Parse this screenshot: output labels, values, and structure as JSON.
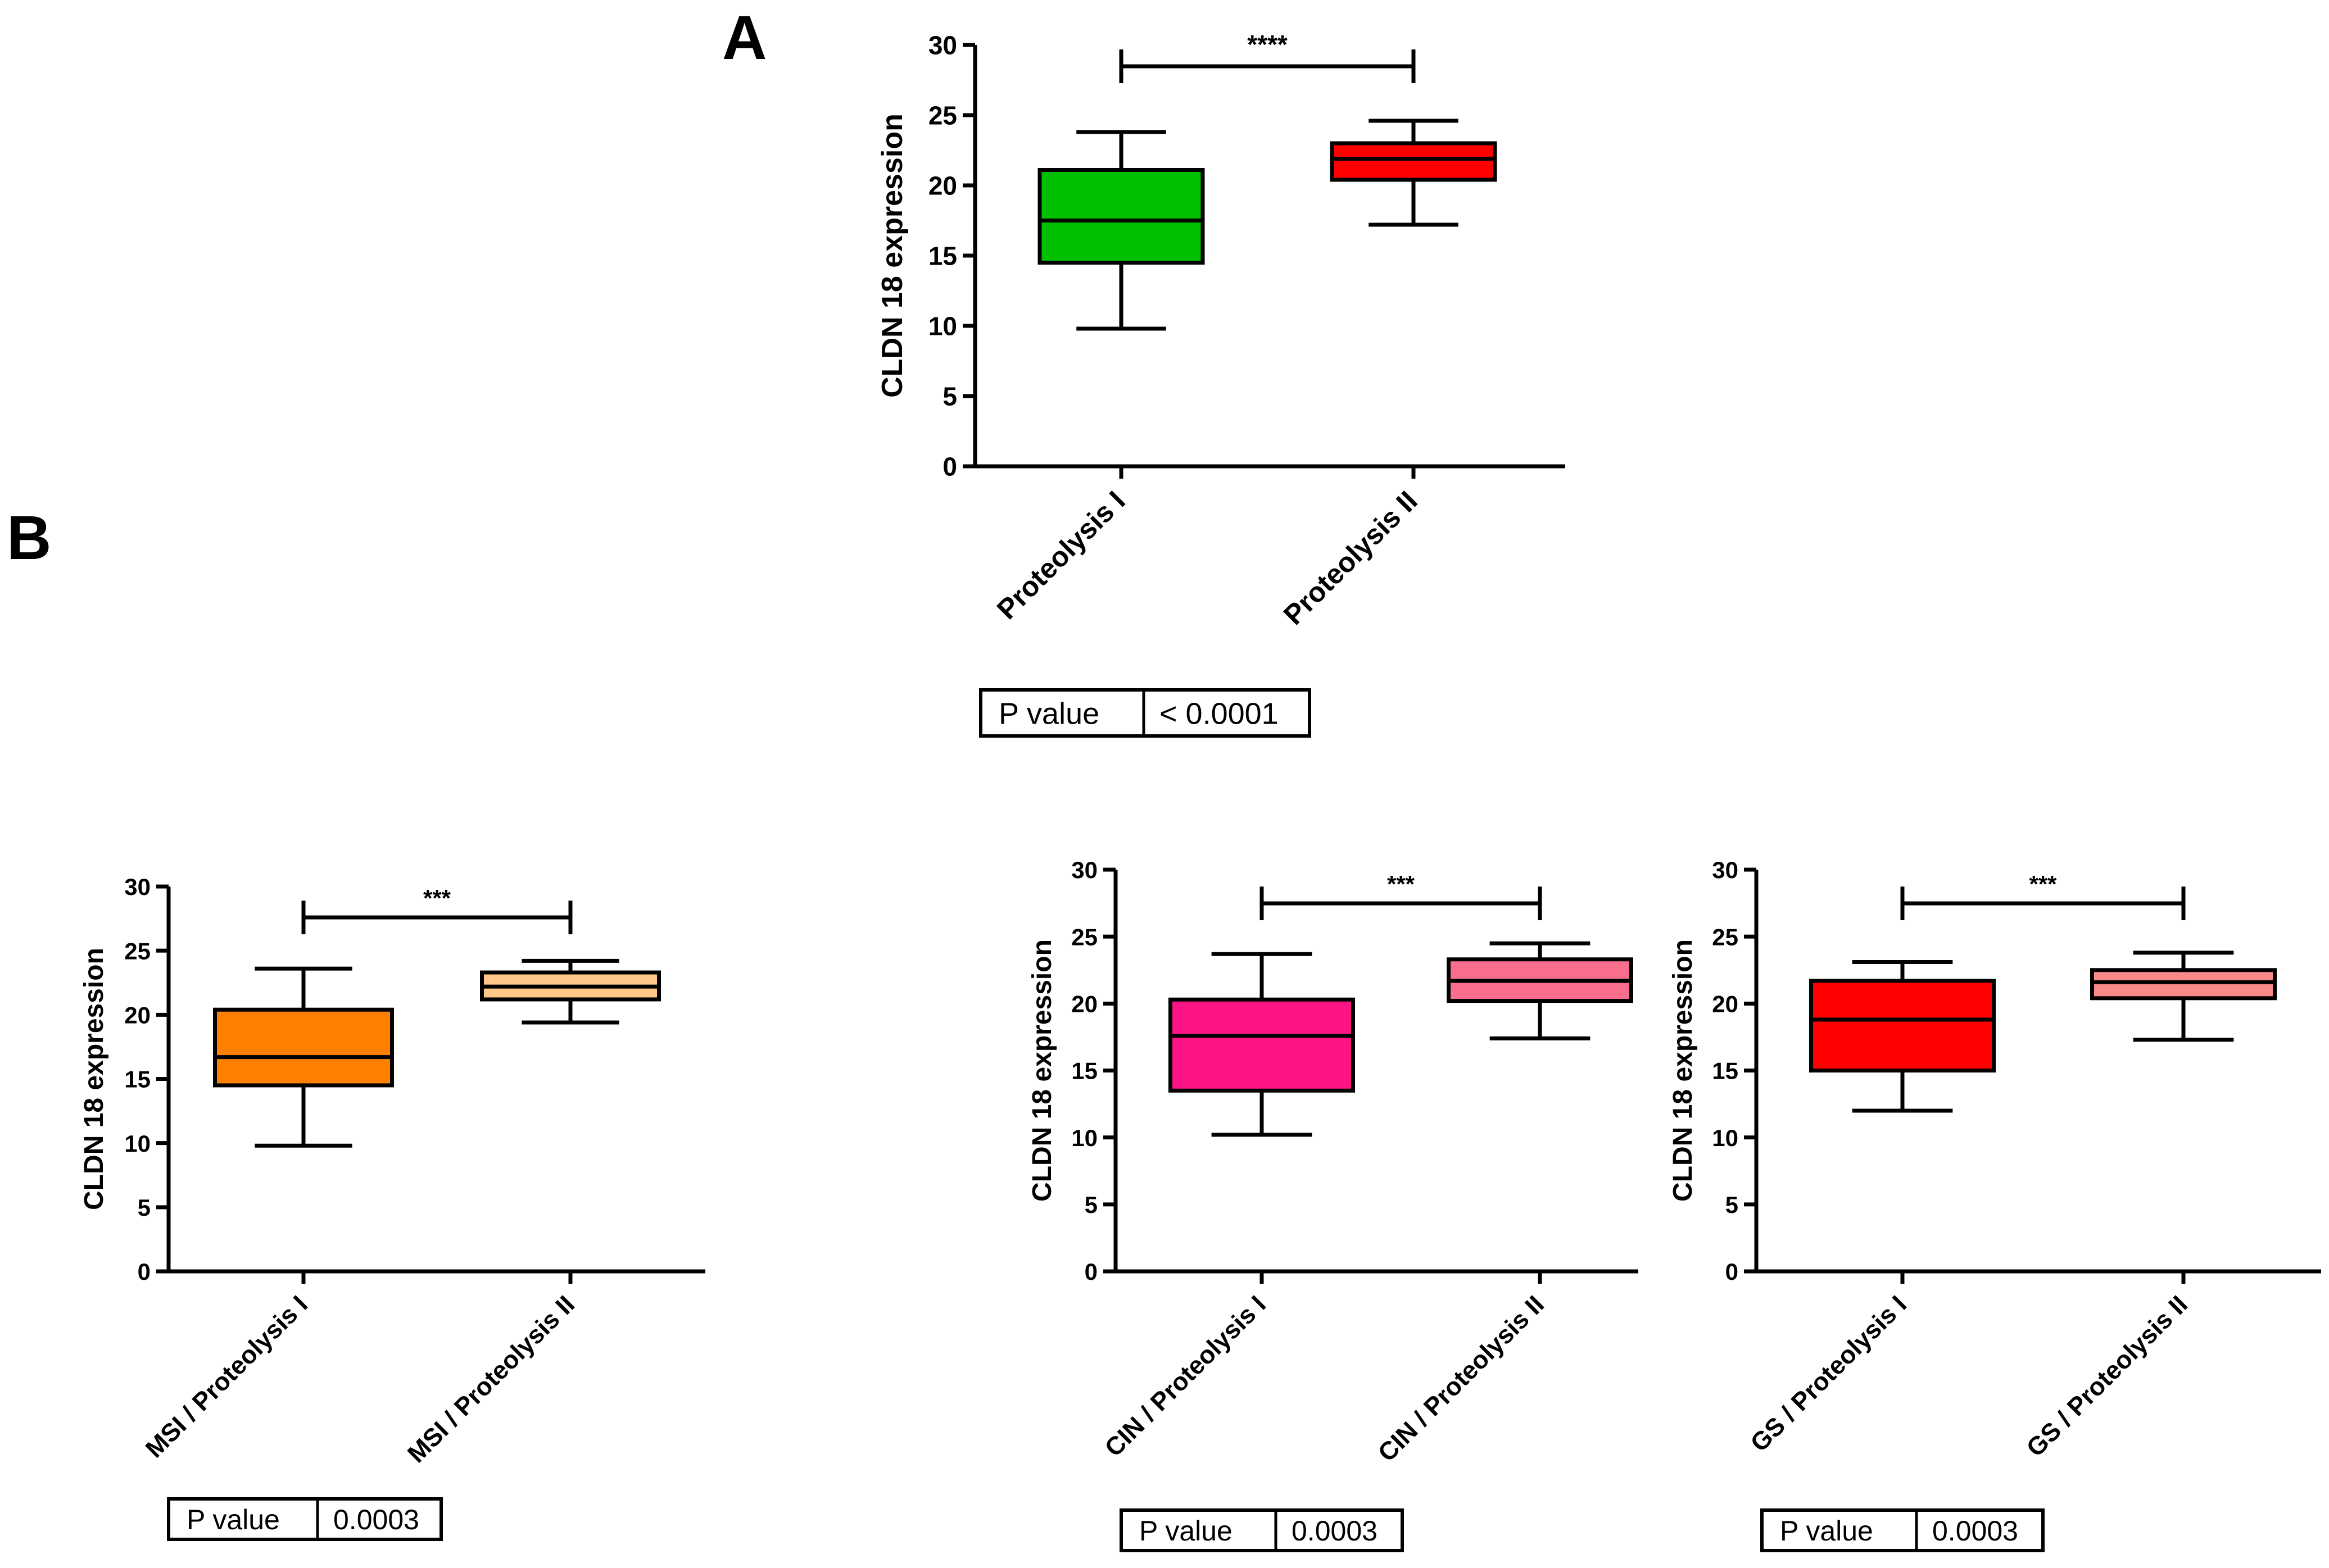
{
  "panel_labels": {
    "a": "A",
    "b": "B"
  },
  "chart_data": [
    {
      "id": "A",
      "type": "box",
      "ylabel": "CLDN 18 expression",
      "ylim": [
        0,
        30
      ],
      "yticks": [
        "0",
        "5",
        "10",
        "15",
        "20",
        "25",
        "30"
      ],
      "categories": [
        "Proteolysis I",
        "Proteolysis II"
      ],
      "boxes": [
        {
          "min": 9.8,
          "q1": 14.5,
          "median": 17.5,
          "q3": 21.1,
          "max": 23.8,
          "color": "#00c000"
        },
        {
          "min": 17.2,
          "q1": 20.4,
          "median": 21.9,
          "q3": 23.0,
          "max": 24.6,
          "color": "#ff0000"
        }
      ],
      "significance": "****",
      "p_table": {
        "label": "P value",
        "value": "< 0.0001"
      }
    },
    {
      "id": "B-MSI",
      "type": "box",
      "ylabel": "CLDN 18 expression",
      "ylim": [
        0,
        30
      ],
      "yticks": [
        "0",
        "5",
        "10",
        "15",
        "20",
        "25",
        "30"
      ],
      "categories": [
        "MSI / Proteolysis I",
        "MSI / Proteolysis II"
      ],
      "boxes": [
        {
          "min": 9.8,
          "q1": 14.5,
          "median": 16.7,
          "q3": 20.4,
          "max": 23.6,
          "color": "#ff8000"
        },
        {
          "min": 19.4,
          "q1": 21.2,
          "median": 22.2,
          "q3": 23.3,
          "max": 24.2,
          "color": "#ffc888"
        }
      ],
      "significance": "***",
      "p_table": {
        "label": "P value",
        "value": "0.0003"
      }
    },
    {
      "id": "B-CIN",
      "type": "box",
      "ylabel": "CLDN 18 expression",
      "ylim": [
        0,
        30
      ],
      "yticks": [
        "0",
        "5",
        "10",
        "15",
        "20",
        "25",
        "30"
      ],
      "categories": [
        "CIN / Proteolysis I",
        "CIN / Proteolysis II"
      ],
      "boxes": [
        {
          "min": 10.2,
          "q1": 13.5,
          "median": 17.6,
          "q3": 20.3,
          "max": 23.7,
          "color": "#ff1486"
        },
        {
          "min": 17.4,
          "q1": 20.2,
          "median": 21.7,
          "q3": 23.3,
          "max": 24.5,
          "color": "#f86e8c"
        }
      ],
      "significance": "***",
      "p_table": {
        "label": "P value",
        "value": "0.0003"
      }
    },
    {
      "id": "B-GS",
      "type": "box",
      "ylabel": "CLDN 18 expression",
      "ylim": [
        0,
        30
      ],
      "yticks": [
        "0",
        "5",
        "10",
        "15",
        "20",
        "25",
        "30"
      ],
      "categories": [
        "GS / Proteolysis I",
        "GS / Proteolysis II"
      ],
      "boxes": [
        {
          "min": 12.0,
          "q1": 15.0,
          "median": 18.8,
          "q3": 21.7,
          "max": 23.1,
          "color": "#ff0000"
        },
        {
          "min": 17.3,
          "q1": 20.4,
          "median": 21.6,
          "q3": 22.5,
          "max": 23.8,
          "color": "#f88a8a"
        }
      ],
      "significance": "***",
      "p_table": {
        "label": "P value",
        "value": "0.0003"
      }
    }
  ]
}
